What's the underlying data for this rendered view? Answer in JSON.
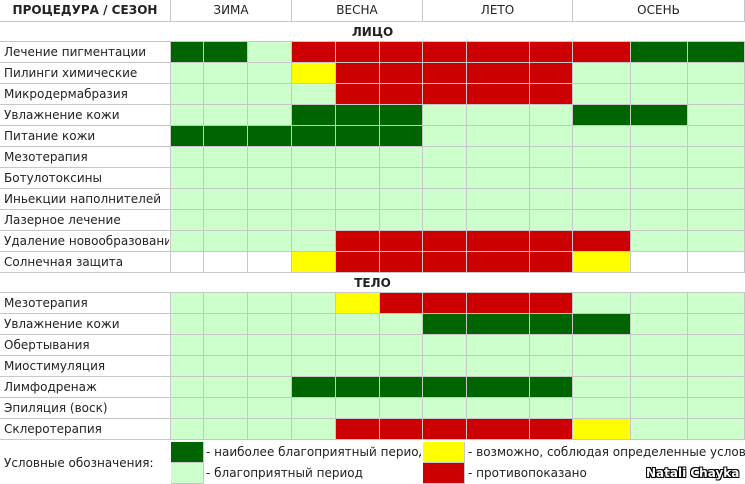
{
  "colors": {
    "G": "#006400",
    "L": "#ccffcc",
    "R": "#cc0000",
    "Y": "#ffff00",
    "W": "#ffffff"
  },
  "header": {
    "title": "ПРОЦЕДУРА / СЕЗОН",
    "seasons": [
      "ЗИМА",
      "ВЕСНА",
      "ЛЕТО",
      "ОСЕНЬ"
    ]
  },
  "sections": [
    {
      "title": "ЛИЦО",
      "rows": [
        {
          "label": "Лечение пигментации",
          "cells": [
            "G",
            "G",
            "L",
            "R",
            "R",
            "R",
            "R",
            "R",
            "R",
            "R",
            "G",
            "G"
          ]
        },
        {
          "label": "Пилинги химические",
          "cells": [
            "L",
            "L",
            "L",
            "Y",
            "R",
            "R",
            "R",
            "R",
            "R",
            "L",
            "L",
            "L"
          ]
        },
        {
          "label": "Микродермабразия",
          "cells": [
            "L",
            "L",
            "L",
            "L",
            "R",
            "R",
            "R",
            "R",
            "R",
            "L",
            "L",
            "L"
          ]
        },
        {
          "label": "Увлажнение кожи",
          "cells": [
            "L",
            "L",
            "L",
            "G",
            "G",
            "G",
            "L",
            "L",
            "L",
            "G",
            "G",
            "L"
          ]
        },
        {
          "label": "Питание кожи",
          "cells": [
            "G",
            "G",
            "G",
            "G",
            "G",
            "G",
            "L",
            "L",
            "L",
            "L",
            "L",
            "L"
          ]
        },
        {
          "label": "Мезотерапия",
          "cells": [
            "L",
            "L",
            "L",
            "L",
            "L",
            "L",
            "L",
            "L",
            "L",
            "L",
            "L",
            "L"
          ]
        },
        {
          "label": "Ботулотоксины",
          "cells": [
            "L",
            "L",
            "L",
            "L",
            "L",
            "L",
            "L",
            "L",
            "L",
            "L",
            "L",
            "L"
          ]
        },
        {
          "label": "Иньекции наполнителей",
          "cells": [
            "L",
            "L",
            "L",
            "L",
            "L",
            "L",
            "L",
            "L",
            "L",
            "L",
            "L",
            "L"
          ]
        },
        {
          "label": "Лазерное лечение",
          "cells": [
            "L",
            "L",
            "L",
            "L",
            "L",
            "L",
            "L",
            "L",
            "L",
            "L",
            "L",
            "L"
          ]
        },
        {
          "label": "Удаление новообразований",
          "cells": [
            "L",
            "L",
            "L",
            "L",
            "R",
            "R",
            "R",
            "R",
            "R",
            "R",
            "L",
            "L"
          ]
        },
        {
          "label": "Солнечная защита",
          "cells": [
            "W",
            "W",
            "W",
            "Y",
            "R",
            "R",
            "R",
            "R",
            "R",
            "Y",
            "W",
            "W"
          ]
        }
      ]
    },
    {
      "title": "ТЕЛО",
      "rows": [
        {
          "label": "Мезотерапия",
          "cells": [
            "L",
            "L",
            "L",
            "L",
            "Y",
            "R",
            "R",
            "R",
            "R",
            "L",
            "L",
            "L"
          ]
        },
        {
          "label": "Увлажнение кожи",
          "cells": [
            "L",
            "L",
            "L",
            "L",
            "L",
            "L",
            "G",
            "G",
            "G",
            "G",
            "L",
            "L"
          ]
        },
        {
          "label": "Обертывания",
          "cells": [
            "L",
            "L",
            "L",
            "L",
            "L",
            "L",
            "L",
            "L",
            "L",
            "L",
            "L",
            "L"
          ]
        },
        {
          "label": "Миостимуляция",
          "cells": [
            "L",
            "L",
            "L",
            "L",
            "L",
            "L",
            "L",
            "L",
            "L",
            "L",
            "L",
            "L"
          ]
        },
        {
          "label": "Лимфодренаж",
          "cells": [
            "L",
            "L",
            "L",
            "G",
            "G",
            "G",
            "G",
            "G",
            "G",
            "L",
            "L",
            "L"
          ]
        },
        {
          "label": "Эпиляция (воск)",
          "cells": [
            "L",
            "L",
            "L",
            "L",
            "L",
            "L",
            "L",
            "L",
            "L",
            "L",
            "L",
            "L"
          ]
        },
        {
          "label": "Склеротерапия",
          "cells": [
            "L",
            "L",
            "L",
            "L",
            "R",
            "R",
            "R",
            "R",
            "R",
            "Y",
            "L",
            "L"
          ]
        }
      ]
    }
  ],
  "legend": {
    "title": "Условные обозначения:",
    "items": [
      {
        "color": "G",
        "text": "- наиболее благоприятный период"
      },
      {
        "color": "L",
        "text": "- благоприятный период"
      },
      {
        "color": "Y",
        "text": "- возможно, соблюдая определенные условия"
      },
      {
        "color": "R",
        "text": "- противопоказано"
      }
    ]
  },
  "credit": "Natali Chayka"
}
